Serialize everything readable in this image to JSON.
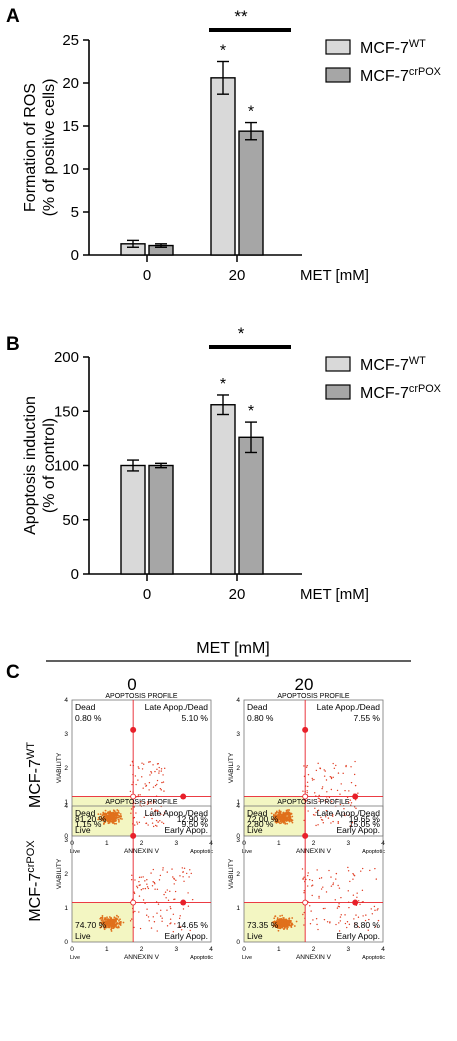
{
  "panels": {
    "A": {
      "letter": "A"
    },
    "B": {
      "letter": "B"
    },
    "C": {
      "letter": "C"
    }
  },
  "chart_data": [
    {
      "id": "A",
      "type": "bar",
      "title": "",
      "ylabel_lines": [
        "Formation of ROS",
        "(% of positive cells)"
      ],
      "xlabel": "MET [mM]",
      "categories": [
        "0",
        "20"
      ],
      "ylim": [
        0,
        25
      ],
      "yticks": [
        0,
        5,
        10,
        15,
        20,
        25
      ],
      "legend_placement": "top-right",
      "series": [
        {
          "name_base": "MCF-7",
          "name_sup": "WT",
          "color": "#d9d9d9",
          "values": [
            1.3,
            20.6
          ],
          "errors": [
            0.4,
            1.9
          ],
          "labels": [
            "",
            "*"
          ]
        },
        {
          "name_base": "MCF-7",
          "name_sup": "crPOX",
          "color": "#a6a6a6",
          "values": [
            1.1,
            14.4
          ],
          "errors": [
            0.2,
            1.0
          ],
          "labels": [
            "",
            "*"
          ]
        }
      ],
      "bracket_label": "**"
    },
    {
      "id": "B",
      "type": "bar",
      "title": "",
      "ylabel_lines": [
        "Apoptosis induction",
        "(% of control)"
      ],
      "xlabel": "MET [mM]",
      "categories": [
        "0",
        "20"
      ],
      "ylim": [
        0,
        200
      ],
      "yticks": [
        0,
        50,
        100,
        150,
        200
      ],
      "legend_placement": "top-right",
      "series": [
        {
          "name_base": "MCF-7",
          "name_sup": "WT",
          "color": "#d9d9d9",
          "values": [
            100,
            156
          ],
          "errors": [
            5,
            9
          ],
          "labels": [
            "",
            "*"
          ]
        },
        {
          "name_base": "MCF-7",
          "name_sup": "crPOX",
          "color": "#a6a6a6",
          "values": [
            100,
            126
          ],
          "errors": [
            2,
            14
          ],
          "labels": [
            "",
            "*"
          ]
        }
      ],
      "bracket_label": "*"
    }
  ],
  "flow": {
    "header": "MET [mM]",
    "columns": [
      "0",
      "20"
    ],
    "rows": [
      {
        "base": "MCF-7",
        "sup": "WT"
      },
      {
        "base": "MCF-7",
        "sup": "crPOX"
      }
    ],
    "plot_title": "APOPTOSIS PROFILE",
    "x_axis_label": "ANNEXIN V",
    "y_axis_label": "VIABILITY",
    "x_left_label": "Live",
    "x_right_label": "Apoptotic",
    "xticks": [
      "0",
      "1",
      "2",
      "3",
      "4"
    ],
    "yticks": [
      "0",
      "1",
      "2",
      "3",
      "4"
    ],
    "quadrant_names": {
      "dead": "Dead",
      "late": "Late Apop./Dead",
      "live": "Live",
      "early": "Early Apop."
    },
    "colors": {
      "live_area": "#f3f6c2",
      "gate": "#e8202a",
      "dots": "#e03a20",
      "cluster": "#e0701c"
    },
    "plots": [
      {
        "row": 0,
        "col": 0,
        "dead": "0.80 %",
        "late": "5.10 %",
        "live": "81.20 %",
        "early": "12.90 %"
      },
      {
        "row": 0,
        "col": 1,
        "dead": "0.80 %",
        "late": "7.55 %",
        "live": "72.00 %",
        "early": "19.65 %"
      },
      {
        "row": 1,
        "col": 0,
        "dead": "1.15 %",
        "late": "9.50 %",
        "live": "74.70 %",
        "early": "14.65 %"
      },
      {
        "row": 1,
        "col": 1,
        "dead": "2.80 %",
        "late": "15.05 %",
        "live": "73.35 %",
        "early": "8.80 %"
      }
    ]
  }
}
